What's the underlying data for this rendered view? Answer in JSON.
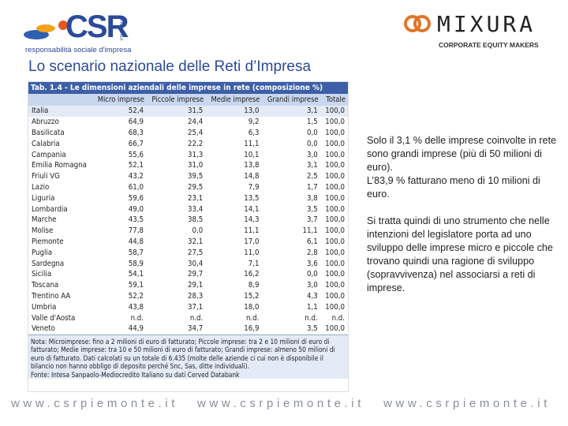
{
  "header": {
    "logo_left": {
      "mark": "CSR",
      "region": "PIEMONTE",
      "tagline": "responsabilità sociale d'impresa"
    },
    "logo_right": {
      "name": "MIXURA",
      "tagline": "CORPORATE EQUITY MAKERS"
    },
    "title": "Lo scenario nazionale delle Reti d’Impresa"
  },
  "table": {
    "caption": "Tab. 1.4 - Le dimensioni aziendali delle imprese in rete (composizione %)",
    "columns": [
      "Micro imprese",
      "Piccole imprese",
      "Medie imprese",
      "Grandi imprese",
      "Totale"
    ],
    "rows": [
      [
        "Italia",
        "52,4",
        "31,5",
        "13,0",
        "3,1",
        "100,0"
      ],
      [
        "Abruzzo",
        "64,9",
        "24,4",
        "9,2",
        "1,5",
        "100,0"
      ],
      [
        "Basilicata",
        "68,3",
        "25,4",
        "6,3",
        "0,0",
        "100,0"
      ],
      [
        "Calabria",
        "66,7",
        "22,2",
        "11,1",
        "0,0",
        "100,0"
      ],
      [
        "Campania",
        "55,6",
        "31,3",
        "10,1",
        "3,0",
        "100,0"
      ],
      [
        "Emilia Romagna",
        "52,1",
        "31,0",
        "13,8",
        "3,1",
        "100,0"
      ],
      [
        "Friuli VG",
        "43,2",
        "39,5",
        "14,8",
        "2,5",
        "100,0"
      ],
      [
        "Lazio",
        "61,0",
        "29,5",
        "7,9",
        "1,7",
        "100,0"
      ],
      [
        "Liguria",
        "59,6",
        "23,1",
        "13,5",
        "3,8",
        "100,0"
      ],
      [
        "Lombardia",
        "49,0",
        "33,4",
        "14,1",
        "3,5",
        "100,0"
      ],
      [
        "Marche",
        "43,5",
        "38,5",
        "14,3",
        "3,7",
        "100,0"
      ],
      [
        "Molise",
        "77,8",
        "0,0",
        "11,1",
        "11,1",
        "100,0"
      ],
      [
        "Piemonte",
        "44,8",
        "32,1",
        "17,0",
        "6,1",
        "100,0"
      ],
      [
        "Puglia",
        "58,7",
        "27,5",
        "11,0",
        "2,8",
        "100,0"
      ],
      [
        "Sardegna",
        "58,9",
        "30,4",
        "7,1",
        "3,6",
        "100,0"
      ],
      [
        "Sicilia",
        "54,1",
        "29,7",
        "16,2",
        "0,0",
        "100,0"
      ],
      [
        "Toscana",
        "59,1",
        "29,1",
        "8,9",
        "3,0",
        "100,0"
      ],
      [
        "Trentino AA",
        "52,2",
        "28,3",
        "15,2",
        "4,3",
        "100,0"
      ],
      [
        "Umbria",
        "43,8",
        "37,1",
        "18,0",
        "1,1",
        "100,0"
      ],
      [
        "Valle d'Aosta",
        "n.d.",
        "n.d.",
        "n.d.",
        "n.d.",
        "n.d."
      ],
      [
        "Veneto",
        "44,9",
        "34,7",
        "16,9",
        "3,5",
        "100,0"
      ]
    ],
    "note": "Nota: Microimprese: fino a 2 milioni di euro di fatturato; Piccole imprese: tra 2 e 10 milioni di euro di fatturato; Medie imprese: tra 10 e 50 milioni di euro di fatturato; Grandi imprese: almeno 50 milioni di euro di fatturato. Dati calcolati su un totale di 6.435 (molte delle aziende ci cui non è disponibile il bilancio non hanno obbligo di deposito perché Snc, Sas, ditte individuali).",
    "source": "Fonte: Intesa Sanpaolo-Mediocredito Italiano su dati Cerved Databank"
  },
  "body": {
    "paragraphs": [
      "Solo il 3,1 % delle imprese coinvolte in rete sono grandi imprese (più di 50 milioni di euro).",
      "L’83,9 % fatturano meno di 10 milioni di euro.",
      "Si tratta quindi di uno strumento che nelle intenzioni del legislatore porta ad uno sviluppo delle imprese micro e piccole che trovano quindi una ragione di sviluppo (sopravvivenza) nel associarsi a reti di imprese."
    ]
  },
  "footer": [
    "www.csrpiemonte.it",
    "www.csrpiemonte.it",
    "www.csrpiemonte.it"
  ]
}
